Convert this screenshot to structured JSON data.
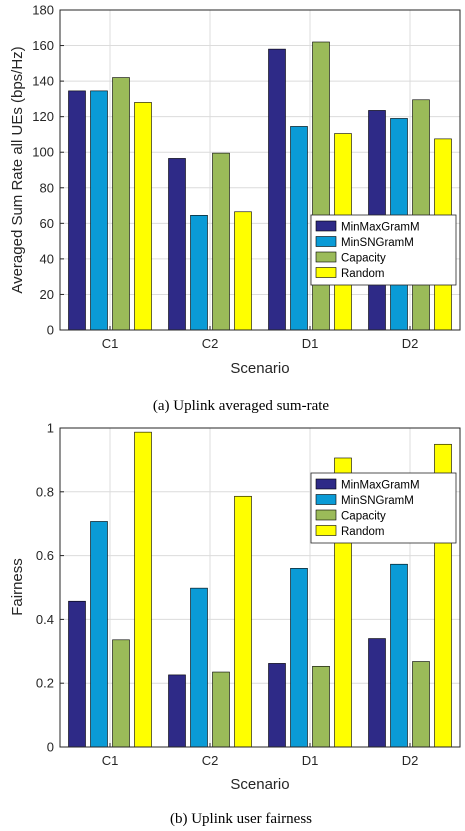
{
  "series_colors": [
    "#2e2a87",
    "#0a9bd6",
    "#9bbb59",
    "#ffff00"
  ],
  "chart_data": [
    {
      "type": "bar",
      "caption": "(a) Uplink averaged sum-rate",
      "xlabel": "Scenario",
      "ylabel": "Averaged Sum Rate all UEs (bps/Hz)",
      "categories": [
        "C1",
        "C2",
        "D1",
        "D2"
      ],
      "ylim": [
        0,
        180
      ],
      "yticks": [
        0,
        20,
        40,
        60,
        80,
        100,
        120,
        140,
        160,
        180
      ],
      "grid": true,
      "legend_position": "right",
      "series": [
        {
          "name": "MinMaxGramM",
          "values": [
            134.5,
            96.5,
            158,
            123.5
          ]
        },
        {
          "name": "MinSNGramM",
          "values": [
            134.5,
            64.5,
            114.5,
            119
          ]
        },
        {
          "name": "Capacity",
          "values": [
            142,
            99.5,
            162,
            129.5
          ]
        },
        {
          "name": "Random",
          "values": [
            128,
            66.5,
            110.5,
            107.5
          ]
        }
      ]
    },
    {
      "type": "bar",
      "caption": "(b) Uplink user fairness",
      "xlabel": "Scenario",
      "ylabel": "Fairness",
      "categories": [
        "C1",
        "C2",
        "D1",
        "D2"
      ],
      "ylim": [
        0,
        1
      ],
      "yticks": [
        0,
        0.2,
        0.4,
        0.6,
        0.8,
        1
      ],
      "grid": true,
      "legend_position": "top-right",
      "series": [
        {
          "name": "MinMaxGramM",
          "values": [
            0.457,
            0.226,
            0.262,
            0.34
          ]
        },
        {
          "name": "MinSNGramM",
          "values": [
            0.707,
            0.498,
            0.56,
            0.573
          ]
        },
        {
          "name": "Capacity",
          "values": [
            0.336,
            0.235,
            0.253,
            0.268
          ]
        },
        {
          "name": "Random",
          "values": [
            0.987,
            0.786,
            0.906,
            0.949
          ]
        }
      ]
    }
  ]
}
